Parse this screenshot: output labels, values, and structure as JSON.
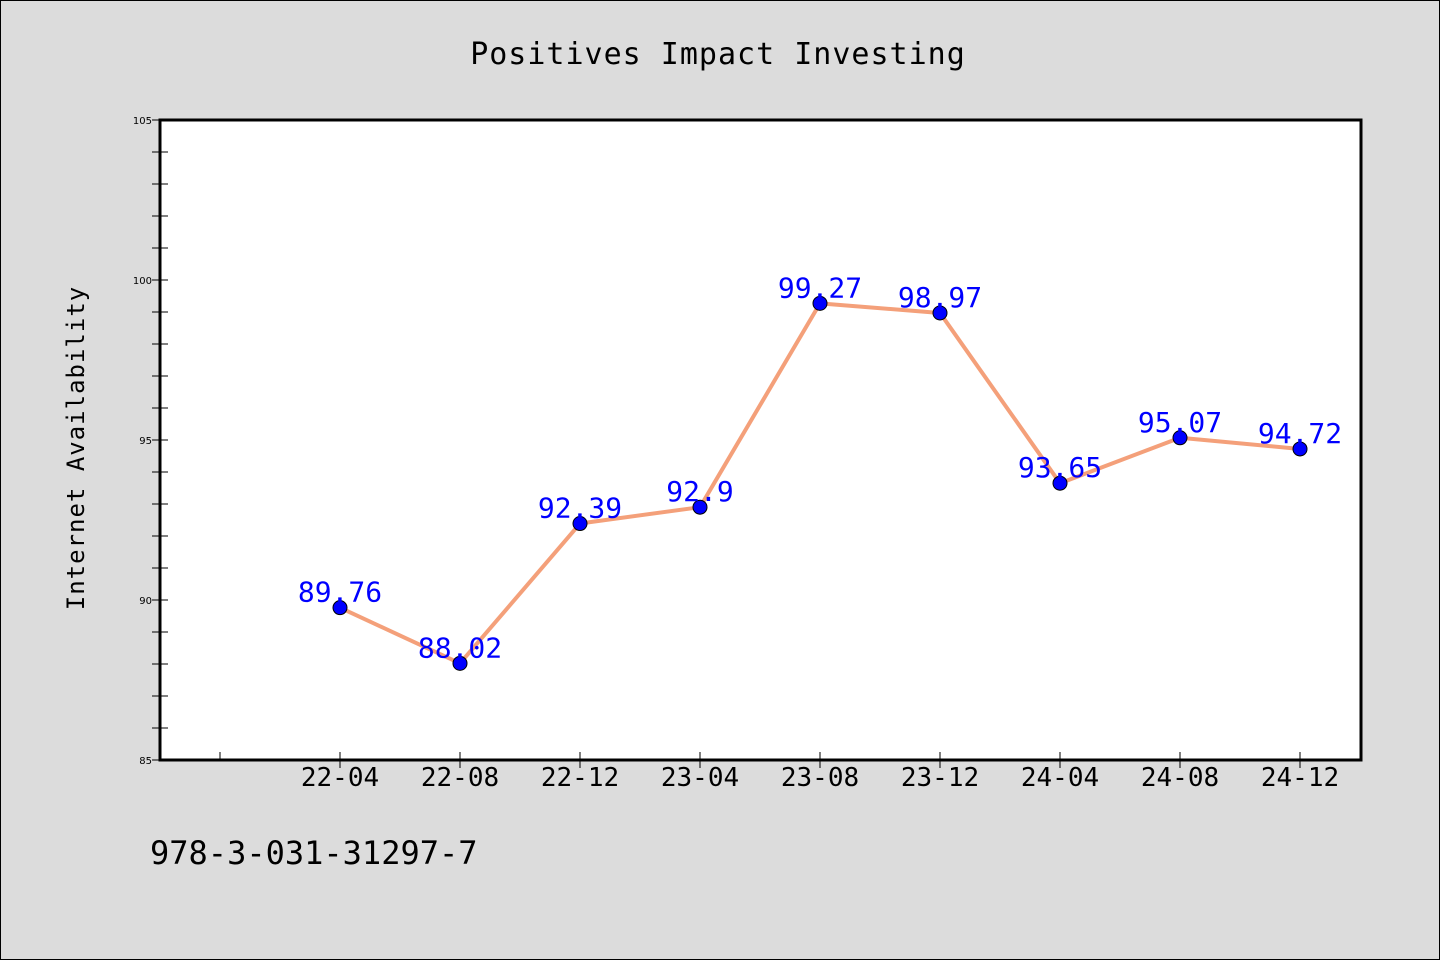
{
  "chart_data": {
    "type": "line",
    "title": "Positives Impact Investing",
    "xlabel": "",
    "ylabel": "Internet Availability",
    "categories": [
      "22-04",
      "22-08",
      "22-12",
      "23-04",
      "23-08",
      "23-12",
      "24-04",
      "24-08",
      "24-12"
    ],
    "series": [
      {
        "values": [
          89.76,
          88.02,
          92.39,
          92.9,
          99.27,
          98.97,
          93.65,
          95.07,
          94.72
        ],
        "labels": [
          "89.76",
          "88.02",
          "92.39",
          "92.9",
          "99.27",
          "98.97",
          "93.65",
          "95.07",
          "94.72"
        ],
        "line_color": "#f4a07a",
        "marker_color": "#0000ff"
      }
    ],
    "ylim": [
      85,
      105
    ],
    "yticks": [
      "85",
      "90",
      "95",
      "100",
      "105"
    ],
    "grid": false,
    "legend": "none"
  },
  "footer": {
    "isbn": "978-3-031-31297-7"
  }
}
